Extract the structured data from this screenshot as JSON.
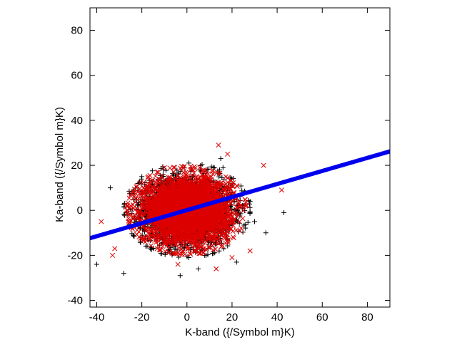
{
  "chart_data": {
    "type": "scatter",
    "title": "",
    "xlabel": "K-band ({/Symbol m}K)",
    "ylabel": "Ka-band ({/Symbol m}K)",
    "xlim": [
      -43,
      90
    ],
    "ylim": [
      -43,
      90
    ],
    "xticks": [
      -40,
      -20,
      0,
      20,
      40,
      60,
      80
    ],
    "yticks": [
      -40,
      -20,
      0,
      20,
      40,
      60,
      80
    ],
    "grid": false,
    "legend": "none",
    "series": [
      {
        "marker": "plus",
        "color": "#000000",
        "distribution": {
          "center": [
            0,
            0
          ],
          "spread": [
            10,
            7.5
          ],
          "count": 2500
        },
        "x": [
          -40,
          -28,
          -34,
          -3,
          15,
          30,
          43,
          35,
          22,
          25,
          -20,
          -15,
          16,
          28,
          5
        ],
        "y": [
          -24,
          -28,
          10,
          -29,
          23,
          -5,
          -1,
          -10,
          -23,
          2,
          15,
          -17,
          19,
          4,
          -26
        ]
      },
      {
        "marker": "x",
        "color": "#dd0000",
        "distribution": {
          "center": [
            0,
            0
          ],
          "spread": [
            9.5,
            7
          ],
          "count": 3500
        },
        "x": [
          -38,
          -33,
          14,
          18,
          34,
          42,
          28,
          -4,
          13,
          -32,
          -10,
          20
        ],
        "y": [
          -5,
          -20,
          29,
          25,
          20,
          9,
          -18,
          -24,
          -26,
          -17,
          19,
          -21
        ],
        "labels": []
      },
      {
        "marker": "dot",
        "color": "#0000ee",
        "fit": {
          "slope": 0.29,
          "intercept": 0.1
        },
        "x": [
          -43,
          90
        ],
        "y": [
          -12.37,
          26.2
        ]
      }
    ]
  }
}
